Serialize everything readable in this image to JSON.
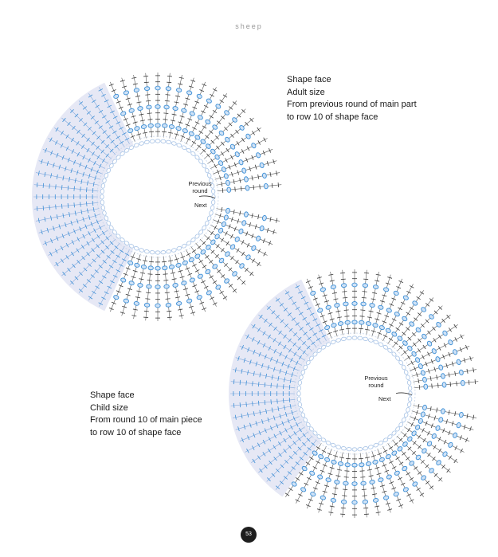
{
  "header": {
    "running_head": "sheep"
  },
  "charts": [
    {
      "id": "adult",
      "caption": [
        "Shape face",
        "Adult size",
        "From previous round of main part",
        "to row 10 of shape face"
      ],
      "previous_round_label": [
        "Previous",
        "round"
      ],
      "next_label": "Next"
    },
    {
      "id": "child",
      "caption": [
        "Shape face",
        "Child size",
        "From round 10 of main piece",
        "to row 10 of shape face"
      ],
      "previous_round_label": [
        "Previous",
        "round"
      ],
      "next_label": "Next"
    }
  ],
  "footer": {
    "page_number": "53"
  },
  "colors": {
    "stitch_dark": "#3a3a3a",
    "stitch_blue": "#3d8fd6",
    "ring_blue_light": "#d6e2f2",
    "shade": "#e6e8f5",
    "page_number_bg": "#1e1e1e"
  }
}
